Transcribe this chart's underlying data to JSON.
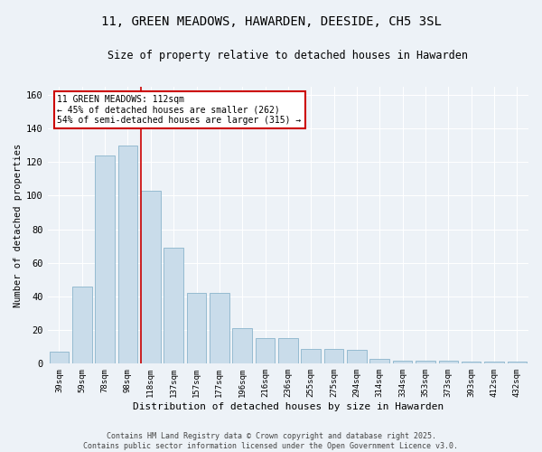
{
  "title": "11, GREEN MEADOWS, HAWARDEN, DEESIDE, CH5 3SL",
  "subtitle": "Size of property relative to detached houses in Hawarden",
  "xlabel": "Distribution of detached houses by size in Hawarden",
  "ylabel": "Number of detached properties",
  "bar_labels": [
    "39sqm",
    "59sqm",
    "78sqm",
    "98sqm",
    "118sqm",
    "137sqm",
    "157sqm",
    "177sqm",
    "196sqm",
    "216sqm",
    "236sqm",
    "255sqm",
    "275sqm",
    "294sqm",
    "314sqm",
    "334sqm",
    "353sqm",
    "373sqm",
    "393sqm",
    "412sqm",
    "432sqm"
  ],
  "bar_values": [
    7,
    46,
    124,
    130,
    103,
    69,
    42,
    42,
    21,
    15,
    15,
    9,
    9,
    8,
    3,
    2,
    2,
    2,
    1,
    1,
    1
  ],
  "bar_color": "#c9dcea",
  "bar_edge_color": "#8ab4cc",
  "vline_color": "#cc0000",
  "annotation_title": "11 GREEN MEADOWS: 112sqm",
  "annotation_line2": "← 45% of detached houses are smaller (262)",
  "annotation_line3": "54% of semi-detached houses are larger (315) →",
  "annotation_box_color": "#ffffff",
  "annotation_box_edge": "#cc0000",
  "ylim": [
    0,
    165
  ],
  "yticks": [
    0,
    20,
    40,
    60,
    80,
    100,
    120,
    140,
    160
  ],
  "footer1": "Contains HM Land Registry data © Crown copyright and database right 2025.",
  "footer2": "Contains public sector information licensed under the Open Government Licence v3.0.",
  "bg_color": "#edf2f7",
  "plot_bg_color": "#edf2f7",
  "grid_color": "#ffffff"
}
